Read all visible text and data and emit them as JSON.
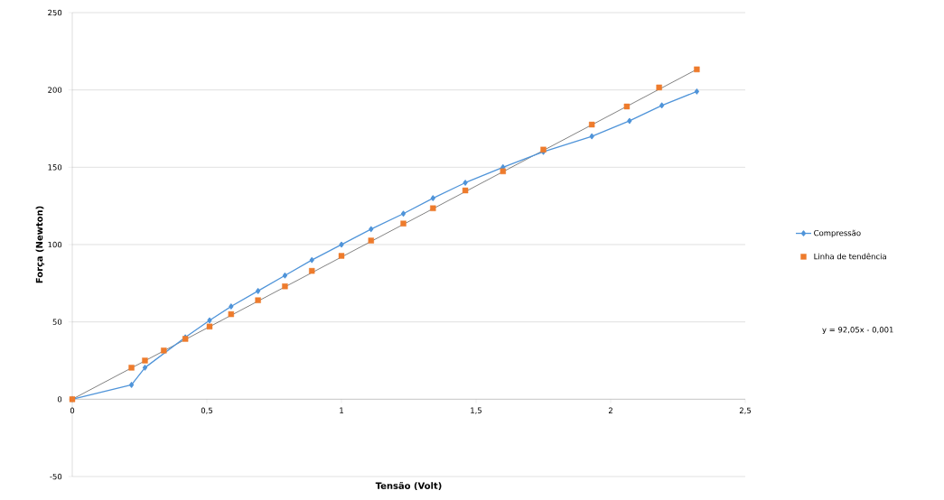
{
  "chart_data": {
    "type": "line",
    "xlabel": "Tensão (Volt)",
    "ylabel": "Força (Newton)",
    "xlim": [
      0,
      2.5
    ],
    "ylim": [
      -50,
      250
    ],
    "xticks": [
      0,
      {
        "value": 0.5,
        "label": "0,5"
      },
      1,
      {
        "value": 1.5,
        "label": "1,5"
      },
      2,
      {
        "value": 2.5,
        "label": "2,5"
      }
    ],
    "yticks": [
      -50,
      0,
      50,
      100,
      150,
      200,
      250
    ],
    "grid": "y",
    "legend": "right",
    "annotations": [
      "y = 92,05x - 0,001"
    ],
    "series": [
      {
        "name": "Compressão",
        "marker": "diamond",
        "color": "#4f94d9",
        "x": [
          0,
          0.22,
          0.27,
          0.42,
          0.51,
          0.59,
          0.69,
          0.79,
          0.89,
          1.0,
          1.11,
          1.23,
          1.34,
          1.46,
          1.6,
          1.75,
          1.93,
          2.07,
          2.19,
          2.32
        ],
        "values": [
          0,
          9.3,
          20.4,
          40,
          51,
          60,
          70,
          80,
          90,
          100,
          110,
          120,
          130,
          140,
          150,
          160,
          170,
          180,
          190,
          199
        ]
      },
      {
        "name": "Linha de tendência",
        "type": "scatter",
        "marker": "square",
        "color": "#ee7b2c",
        "x": [
          0,
          0.22,
          0.27,
          0.34,
          0.42,
          0.51,
          0.59,
          0.69,
          0.79,
          0.89,
          1.0,
          1.11,
          1.23,
          1.34,
          1.46,
          1.6,
          1.75,
          1.93,
          2.06,
          2.18,
          2.32
        ],
        "values": [
          0,
          20.4,
          25,
          31.5,
          39,
          47,
          55,
          64,
          73,
          83,
          92.7,
          102.6,
          113.6,
          123.5,
          135,
          147.4,
          161.4,
          177.6,
          189.3,
          201.6,
          213.3
        ]
      },
      {
        "type": "line",
        "marker": "none",
        "color": "#000000",
        "x": [
          0,
          2.32
        ],
        "values": [
          0,
          213.3
        ]
      }
    ]
  }
}
